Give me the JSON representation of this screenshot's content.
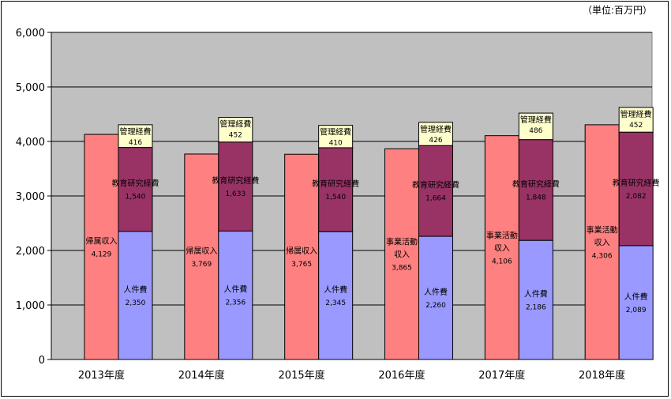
{
  "unit_label": "（単位:百万円）",
  "chart_data": {
    "type": "bar",
    "categories": [
      "2013年度",
      "2014年度",
      "2015年度",
      "2016年度",
      "2017年度",
      "2018年度"
    ],
    "ylim": [
      0,
      6000
    ],
    "yticks": [
      "0",
      "1,000",
      "2,000",
      "3,000",
      "4,000",
      "5,000",
      "6,000"
    ],
    "ytick_values": [
      0,
      1000,
      2000,
      3000,
      4000,
      5000,
      6000
    ],
    "grid": true,
    "income": {
      "labels": [
        "帰属収入",
        "帰属収入",
        "帰属収入",
        "事業活動収入",
        "事業活動収入",
        "事業活動収入"
      ],
      "values": [
        4129,
        3769,
        3765,
        3865,
        4106,
        4306
      ],
      "value_labels": [
        "4,129",
        "3,769",
        "3,765",
        "3,865",
        "4,106",
        "4,306"
      ],
      "color": "#ff8080"
    },
    "expense_series": [
      {
        "name": "人件費",
        "values": [
          2350,
          2356,
          2345,
          2260,
          2186,
          2089
        ],
        "value_labels": [
          "2,350",
          "2,356",
          "2,345",
          "2,260",
          "2,186",
          "2,089"
        ],
        "color": "#9999ff"
      },
      {
        "name": "教育研究経費",
        "values": [
          1540,
          1633,
          1540,
          1664,
          1848,
          2082
        ],
        "value_labels": [
          "1,540",
          "1,633",
          "1,540",
          "1,664",
          "1,848",
          "2,082"
        ],
        "color": "#993366"
      },
      {
        "name": "管理経費",
        "values": [
          416,
          452,
          410,
          426,
          486,
          452
        ],
        "value_labels": [
          "416",
          "452",
          "410",
          "426",
          "486",
          "452"
        ],
        "color": "#ffffcc"
      }
    ],
    "plot_background": "#c0c0c0"
  }
}
